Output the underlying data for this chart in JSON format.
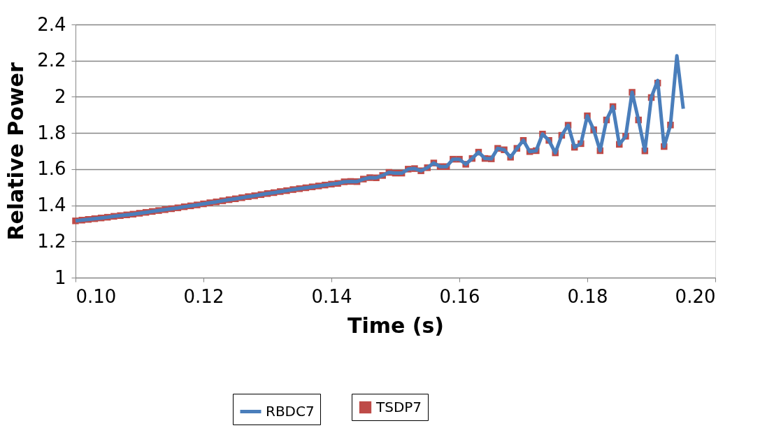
{
  "chart_data": {
    "type": "line",
    "xlabel": "Time (s)",
    "ylabel": "Relative Power",
    "x": [
      0.1,
      0.101,
      0.102,
      0.103,
      0.104,
      0.105,
      0.106,
      0.107,
      0.108,
      0.109,
      0.11,
      0.111,
      0.112,
      0.113,
      0.114,
      0.115,
      0.116,
      0.117,
      0.118,
      0.119,
      0.12,
      0.121,
      0.122,
      0.123,
      0.124,
      0.125,
      0.126,
      0.127,
      0.128,
      0.129,
      0.13,
      0.131,
      0.132,
      0.133,
      0.134,
      0.135,
      0.136,
      0.137,
      0.138,
      0.139,
      0.14,
      0.141,
      0.142,
      0.143,
      0.144,
      0.145,
      0.146,
      0.147,
      0.148,
      0.149,
      0.15,
      0.151,
      0.152,
      0.153,
      0.154,
      0.155,
      0.156,
      0.157,
      0.158,
      0.159,
      0.16,
      0.161,
      0.162,
      0.163,
      0.164,
      0.165,
      0.166,
      0.167,
      0.168,
      0.169,
      0.17,
      0.171,
      0.172,
      0.173,
      0.174,
      0.175,
      0.176,
      0.177,
      0.178,
      0.179,
      0.18,
      0.181,
      0.182,
      0.183,
      0.184,
      0.185,
      0.186,
      0.187,
      0.188,
      0.189,
      0.19,
      0.191,
      0.192,
      0.193,
      0.194,
      0.195
    ],
    "series": [
      {
        "name": "RBDC7",
        "type": "line",
        "marker": "none",
        "color": "#4a7ebb",
        "values": [
          1.314,
          1.318,
          1.322,
          1.326,
          1.33,
          1.334,
          1.339,
          1.343,
          1.347,
          1.351,
          1.356,
          1.361,
          1.366,
          1.371,
          1.376,
          1.381,
          1.386,
          1.392,
          1.397,
          1.402,
          1.408,
          1.414,
          1.419,
          1.425,
          1.431,
          1.436,
          1.442,
          1.448,
          1.453,
          1.459,
          1.465,
          1.47,
          1.476,
          1.481,
          1.487,
          1.492,
          1.497,
          1.502,
          1.507,
          1.512,
          1.517,
          1.521,
          1.53,
          1.532,
          1.531,
          1.545,
          1.553,
          1.552,
          1.565,
          1.582,
          1.578,
          1.578,
          1.6,
          1.603,
          1.591,
          1.608,
          1.634,
          1.614,
          1.614,
          1.655,
          1.655,
          1.627,
          1.659,
          1.694,
          1.659,
          1.657,
          1.715,
          1.707,
          1.666,
          1.715,
          1.759,
          1.697,
          1.702,
          1.794,
          1.759,
          1.69,
          1.787,
          1.843,
          1.721,
          1.741,
          1.895,
          1.818,
          1.702,
          1.872,
          1.946,
          1.737,
          1.782,
          2.025,
          1.872,
          1.701,
          1.996,
          2.09,
          1.725,
          1.844,
          2.227,
          1.934
        ]
      },
      {
        "name": "TSDP7",
        "type": "scatter",
        "marker": "square",
        "color": "#be4b48",
        "values": [
          1.314,
          1.318,
          1.322,
          1.326,
          1.33,
          1.334,
          1.339,
          1.343,
          1.347,
          1.351,
          1.356,
          1.361,
          1.366,
          1.371,
          1.376,
          1.381,
          1.386,
          1.392,
          1.397,
          1.402,
          1.408,
          1.414,
          1.419,
          1.425,
          1.431,
          1.436,
          1.442,
          1.448,
          1.453,
          1.459,
          1.465,
          1.47,
          1.476,
          1.481,
          1.487,
          1.492,
          1.497,
          1.502,
          1.507,
          1.512,
          1.517,
          1.521,
          1.53,
          1.532,
          1.531,
          1.545,
          1.553,
          1.552,
          1.565,
          1.582,
          1.578,
          1.578,
          1.6,
          1.603,
          1.591,
          1.608,
          1.634,
          1.614,
          1.614,
          1.655,
          1.655,
          1.627,
          1.659,
          1.694,
          1.659,
          1.657,
          1.715,
          1.707,
          1.666,
          1.715,
          1.759,
          1.697,
          1.702,
          1.794,
          1.759,
          1.69,
          1.787,
          1.843,
          1.721,
          1.741,
          1.895,
          1.818,
          1.702,
          1.872,
          1.946,
          1.737,
          1.782,
          2.025,
          1.872,
          1.701,
          1.996,
          2.076,
          1.725,
          1.844,
          null,
          null
        ]
      }
    ],
    "xlim": [
      0.1,
      0.2
    ],
    "xticks": [
      {
        "value": 0.1,
        "label": "0.10"
      },
      {
        "value": 0.12,
        "label": "0.12"
      },
      {
        "value": 0.14,
        "label": "0.14"
      },
      {
        "value": 0.16,
        "label": "0.16"
      },
      {
        "value": 0.18,
        "label": "0.18"
      },
      {
        "value": 0.2,
        "label": "0.20"
      }
    ],
    "ylim": [
      1,
      2.4
    ],
    "yticks": [
      1,
      1.2,
      1.4,
      1.6,
      1.8,
      2,
      2.2,
      2.4
    ],
    "grid": "y",
    "legend": "bottom"
  }
}
